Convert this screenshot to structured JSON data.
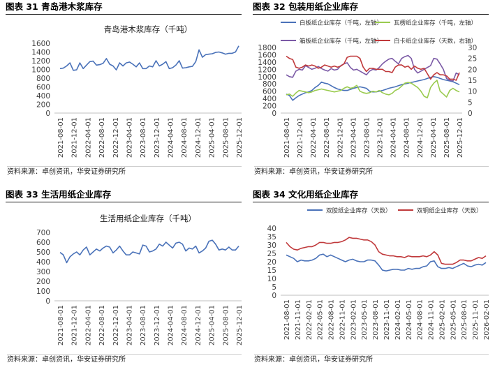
{
  "colors": {
    "blue": "#4a72b9",
    "green": "#9acb4f",
    "purple": "#7b5aa6",
    "red": "#c0393b",
    "axis": "#bfbfbf",
    "text": "#404040"
  },
  "panels": [
    {
      "title": "图表 31 青岛港木浆库存",
      "source": "资料来源：卓创资讯，华安证券研究所"
    },
    {
      "title": "图表 32 包装用纸企业库存",
      "source": "资料来源：卓创资讯，华安证券研究所"
    },
    {
      "title": "图表 33 生活用纸企业库存",
      "source": "资料来源：卓创资讯，华安证券研究所"
    },
    {
      "title": "图表 34 文化用纸企业库存",
      "source": "资料来源：卓创资讯，华安证券研究所"
    }
  ],
  "chart_data": [
    {
      "type": "line",
      "title": "青岛港木浆库存（千吨）",
      "ylim": [
        0,
        1600
      ],
      "yticks": [
        "0",
        "200",
        "400",
        "600",
        "800",
        "1000",
        "1200",
        "1400",
        "1600"
      ],
      "xticks": [
        "2021-08-01",
        "2021-12-01",
        "2022-04-01",
        "2022-08-01",
        "2022-12-01",
        "2023-04-01",
        "2023-08-01",
        "2023-12-01",
        "2024-04-01",
        "2024-08-01",
        "2024-12-01",
        "2025-04-01",
        "2025-08-01",
        "2025-12-01"
      ],
      "series": [
        {
          "name": "青岛港木浆库存",
          "color": "blue",
          "values": [
            1020,
            1030,
            1080,
            1150,
            980,
            990,
            1150,
            1020,
            1100,
            1180,
            1190,
            1100,
            1110,
            1140,
            1250,
            1120,
            1080,
            990,
            1150,
            1080,
            1150,
            1170,
            1120,
            1060,
            1150,
            1020,
            1020,
            1080,
            1060,
            1200,
            1080,
            1120,
            1180,
            1020,
            1040,
            1100,
            1200,
            1030,
            1040,
            1060,
            1070,
            1180,
            1450,
            1280,
            1340,
            1350,
            1360,
            1390,
            1400,
            1380,
            1350,
            1370,
            1370,
            1400,
            1540
          ]
        }
      ]
    },
    {
      "type": "line",
      "title": "",
      "ylim": [
        0,
        1800
      ],
      "y2lim": [
        0,
        30
      ],
      "yticks": [
        "0",
        "200",
        "400",
        "600",
        "800",
        "1000",
        "1200",
        "1400",
        "1600",
        "1800"
      ],
      "y2ticks": [
        "0",
        "5",
        "10",
        "15",
        "20",
        "25",
        "30"
      ],
      "xticks": [
        "2021-08-01",
        "2021-12-01",
        "2022-04-01",
        "2022-08-01",
        "2022-12-01",
        "2023-04-01",
        "2023-08-01",
        "2023-12-01",
        "2024-04-01",
        "2024-08-01",
        "2024-12-01",
        "2025-04-01",
        "2025-08-01",
        "2025-12-01"
      ],
      "legend": [
        "白板纸企业库存（千吨，左轴）",
        "瓦楞纸企业库存（千吨，左轴）",
        "箱板纸企业库存（千吨，左轴）",
        "白卡纸企业库存（天数，右轴）"
      ],
      "series": [
        {
          "name": "白板纸企业库存（千吨，左轴）",
          "color": "blue",
          "axis": "left",
          "values": [
            520,
            480,
            350,
            420,
            480,
            520,
            560,
            580,
            620,
            700,
            760,
            850,
            820,
            800,
            750,
            700,
            660,
            640,
            620,
            620,
            650,
            680,
            700,
            720,
            700,
            680,
            600,
            580,
            580,
            600,
            620,
            650,
            680,
            700,
            720,
            750,
            780,
            800,
            820,
            840,
            860,
            880,
            900,
            920,
            950,
            980,
            1000,
            980,
            950,
            920,
            900,
            880,
            860,
            820,
            780
          ]
        },
        {
          "name": "瓦楞纸企业库存（千吨，左轴）",
          "color": "green",
          "axis": "left",
          "values": [
            500,
            520,
            460,
            550,
            620,
            600,
            580,
            560,
            580,
            620,
            640,
            660,
            640,
            620,
            600,
            580,
            600,
            620,
            680,
            720,
            680,
            700,
            760,
            600,
            560,
            540,
            560,
            600,
            580,
            620,
            560,
            520,
            500,
            540,
            620,
            660,
            740,
            820,
            840,
            820,
            760,
            700,
            600,
            460,
            420,
            700,
            820,
            900,
            600,
            520,
            440,
            620,
            680,
            620,
            580
          ]
        },
        {
          "name": "箱板纸企业库存（千吨，左轴）",
          "color": "purple",
          "axis": "left",
          "values": [
            1050,
            1000,
            980,
            1150,
            1200,
            1180,
            1300,
            1250,
            1200,
            1230,
            1280,
            1220,
            1180,
            1150,
            1220,
            1180,
            1200,
            1300,
            1350,
            1380,
            1250,
            1180,
            1200,
            1150,
            1100,
            1050,
            1150,
            1200,
            1180,
            1250,
            1350,
            1420,
            1480,
            1500,
            1420,
            1350,
            1500,
            1550,
            1580,
            1500,
            1200,
            1100,
            1150,
            1200,
            1250,
            1300,
            1500,
            1480,
            1350,
            1200,
            950,
            900,
            880,
            1100,
            1050
          ]
        },
        {
          "name": "白卡纸企业库存（天数，右轴）",
          "color": "red",
          "axis": "right",
          "values": [
            26,
            25,
            24.5,
            21,
            20.5,
            21,
            22,
            21.5,
            22,
            21.5,
            20.5,
            21,
            22,
            21.5,
            21,
            21.5,
            21,
            21.5,
            22.5,
            25.5,
            26,
            26,
            26,
            25,
            21,
            19,
            20.5,
            20.5,
            20,
            20,
            20,
            19,
            19,
            18.5,
            21,
            22,
            22,
            21,
            21.5,
            20,
            21.5,
            20.5,
            20,
            20.5,
            18,
            15.5,
            17.5,
            18.5,
            17.5,
            17.5,
            17,
            15.5,
            15.5,
            15,
            18.5
          ]
        }
      ]
    },
    {
      "type": "line",
      "title": "生活用纸企业库存（千吨）",
      "ylim": [
        0,
        700
      ],
      "yticks": [
        "0",
        "100",
        "200",
        "300",
        "400",
        "500",
        "600",
        "700"
      ],
      "xticks": [
        "2021-08-01",
        "2021-12-01",
        "2022-04-01",
        "2022-08-01",
        "2022-12-01",
        "2023-04-01",
        "2023-08-01",
        "2023-12-01",
        "2024-04-01",
        "2024-08-01",
        "2024-12-01",
        "2025-04-01",
        "2025-08-01",
        "2025-12-01"
      ],
      "series": [
        {
          "name": "生活用纸企业库存",
          "color": "blue",
          "values": [
            495,
            470,
            390,
            450,
            480,
            500,
            470,
            520,
            550,
            470,
            500,
            530,
            510,
            540,
            560,
            550,
            490,
            520,
            560,
            510,
            470,
            470,
            500,
            490,
            480,
            570,
            560,
            500,
            510,
            530,
            580,
            560,
            600,
            570,
            540,
            590,
            600,
            580,
            510,
            540,
            530,
            560,
            490,
            510,
            540,
            610,
            620,
            580,
            520,
            530,
            520,
            550,
            520,
            520,
            560
          ]
        }
      ]
    },
    {
      "type": "line",
      "title": "",
      "ylim": [
        0,
        40
      ],
      "yticks": [
        "0",
        "5",
        "10",
        "15",
        "20",
        "25",
        "30",
        "35",
        "40"
      ],
      "xticks": [
        "2021-08-01",
        "2021-11-01",
        "2022-02-01",
        "2022-05-01",
        "2022-08-01",
        "2022-11-01",
        "2023-02-01",
        "2023-05-01",
        "2023-08-01",
        "2023-11-01",
        "2024-02-01",
        "2024-05-01",
        "2024-08-01",
        "2024-11-01",
        "2025-02-01",
        "2025-05-01",
        "2025-08-01",
        "2025-11-01",
        "2026-02-01"
      ],
      "legend": [
        "双胶纸企业库存（天数）",
        "双铜纸企业库存（天数）"
      ],
      "series": [
        {
          "name": "双胶纸企业库存（天数）",
          "color": "blue",
          "values": [
            24,
            23,
            22,
            20,
            21,
            20.5,
            20.5,
            21,
            22,
            24,
            24.5,
            23,
            24,
            23,
            22,
            21,
            20,
            21,
            21.5,
            20.5,
            20,
            20,
            21,
            21,
            20.5,
            18,
            15,
            14.5,
            15,
            15.5,
            15.5,
            15,
            15,
            16,
            15.5,
            16,
            16,
            17,
            17.5,
            20,
            20.5,
            17,
            16,
            16,
            16.5,
            16,
            17,
            18,
            19,
            17.5,
            17,
            18,
            18.5,
            18,
            19.5
          ]
        },
        {
          "name": "双铜纸企业库存（天数）",
          "color": "red",
          "values": [
            31.5,
            29,
            27.5,
            27,
            28,
            28.5,
            29,
            29,
            30,
            31.5,
            31.5,
            31,
            31,
            31.5,
            31.5,
            32,
            33,
            34.5,
            34,
            34,
            33.5,
            33,
            33,
            32,
            30,
            26,
            24.5,
            24,
            23.5,
            23.5,
            23,
            23,
            22.5,
            23.5,
            23,
            23,
            23,
            23.5,
            23,
            24,
            26,
            24,
            19,
            18.5,
            18.5,
            18.5,
            19.5,
            21,
            21,
            20.5,
            20.5,
            21.5,
            22.5,
            22,
            23.5
          ]
        }
      ]
    }
  ]
}
